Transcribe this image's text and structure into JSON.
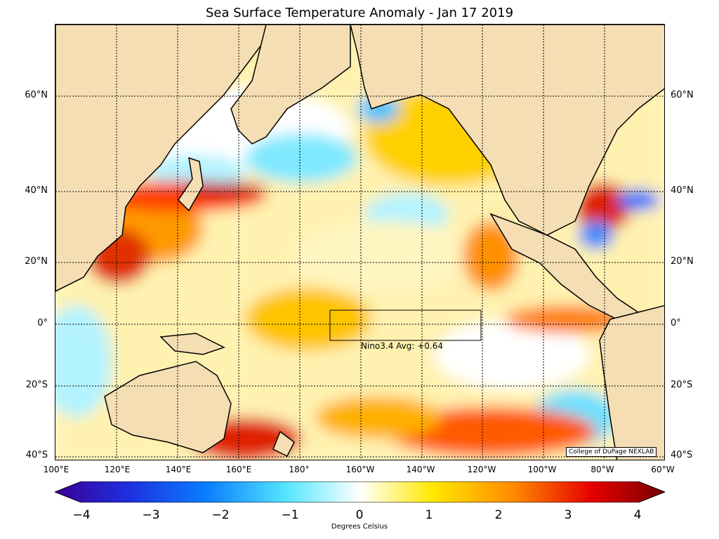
{
  "title": "Sea Surface Temperature Anomaly - Jan 17 2019",
  "credit": "College of DuPage NEXLAB",
  "nino": {
    "label": "Nino3.4 Avg: +0.64"
  },
  "lat_labels": [
    "60°N",
    "40°N",
    "20°N",
    "0°",
    "20°S",
    "40°S"
  ],
  "lon_labels": [
    "100°E",
    "120°E",
    "140°E",
    "160°E",
    "180°",
    "160°W",
    "140°W",
    "120°W",
    "100°W",
    "80°W",
    "60°W"
  ],
  "colorbar": {
    "ticks": [
      "−4",
      "−3",
      "−2",
      "−1",
      "0",
      "1",
      "2",
      "3",
      "4"
    ],
    "label": "Degrees Celsius"
  },
  "colors": {
    "land": "#f5deb3",
    "ocean_base": "#fff7cc"
  }
}
